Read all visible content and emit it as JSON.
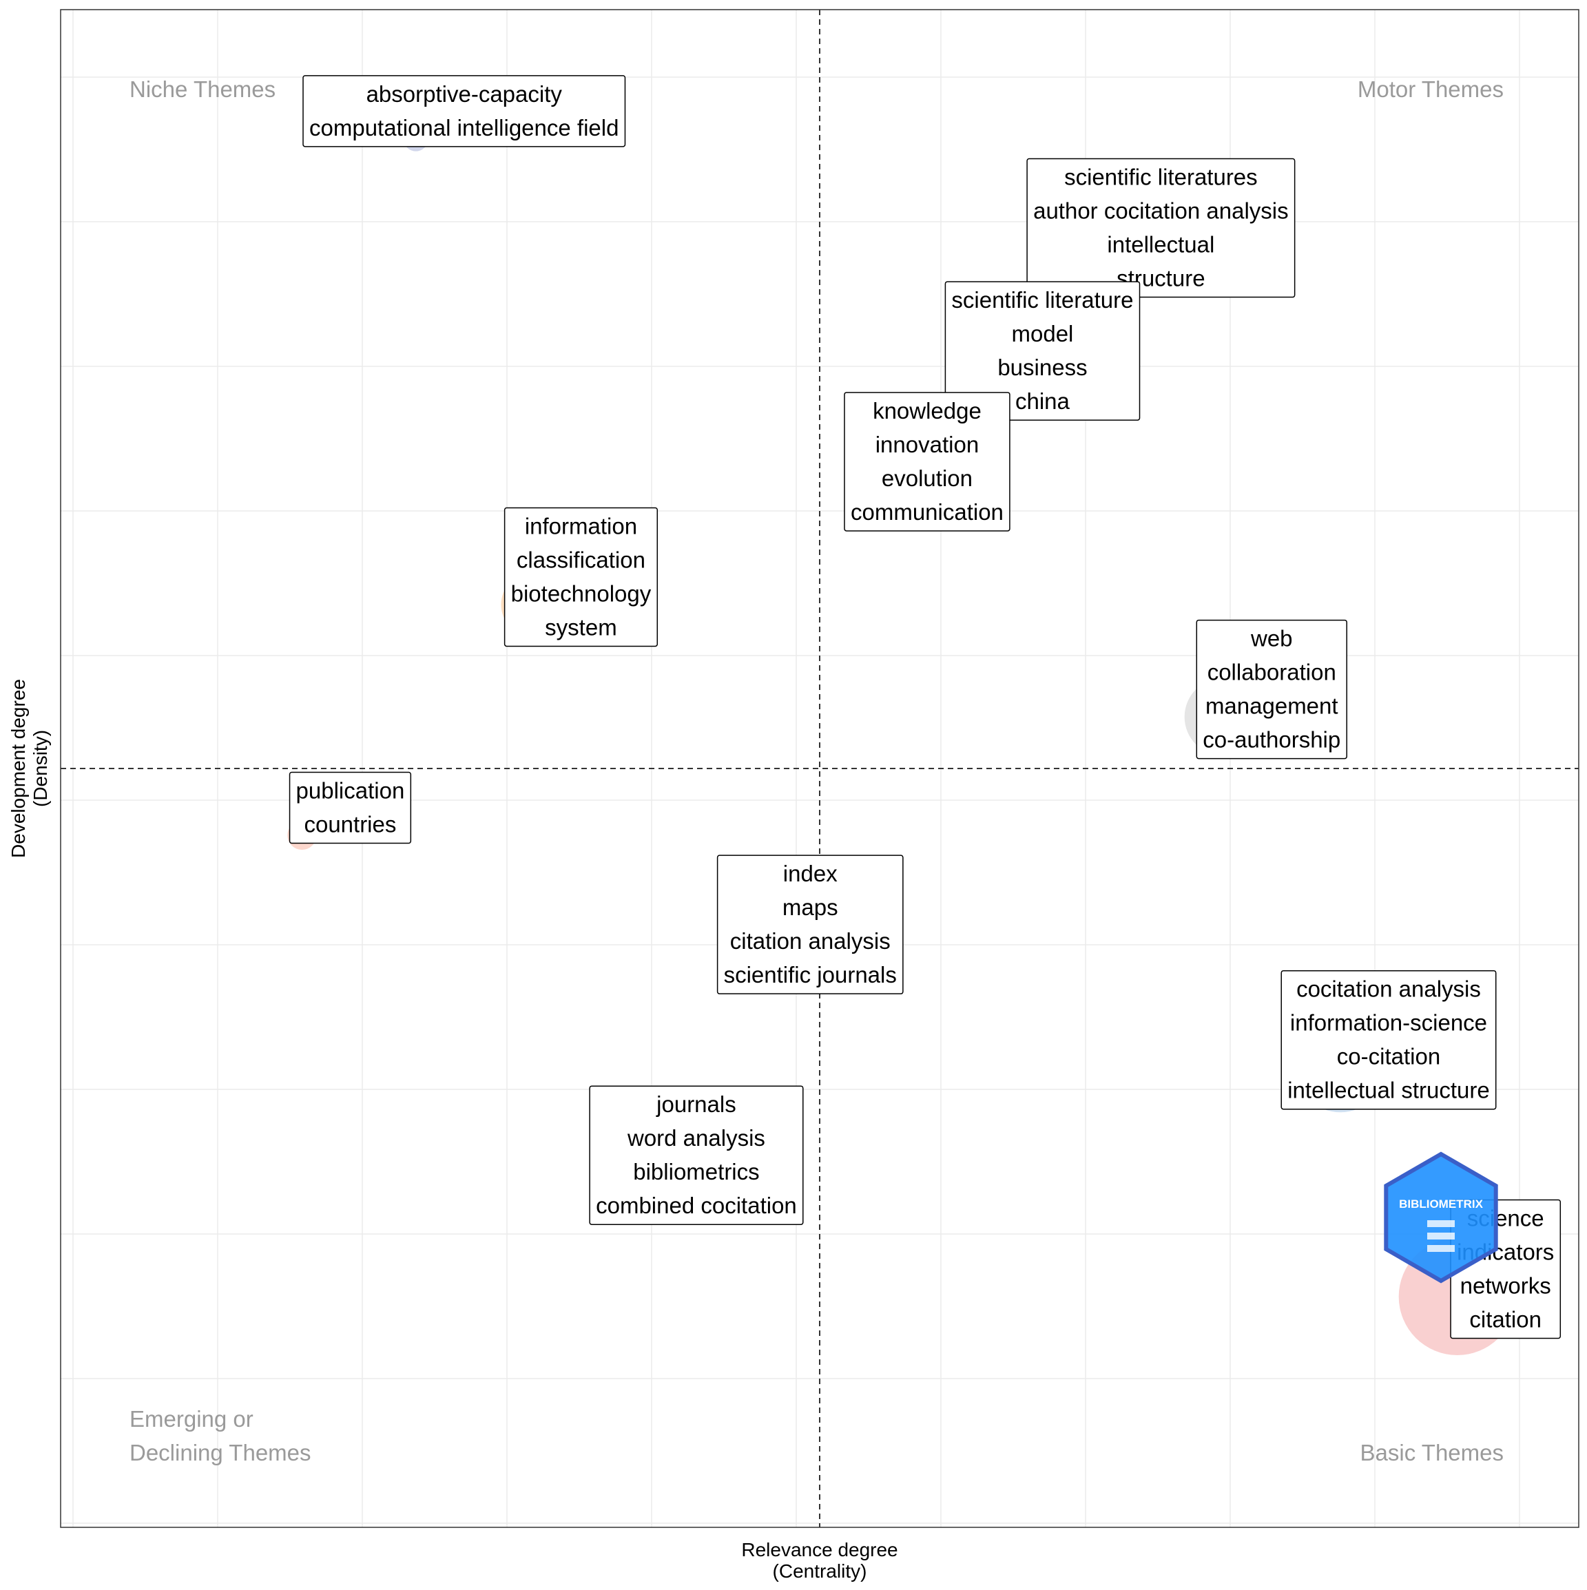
{
  "chart_data": {
    "type": "scatter",
    "xlabel": [
      "Relevance degree",
      "(Centrality)"
    ],
    "ylabel": [
      "Development degree",
      "(Density)"
    ],
    "quadrants": {
      "niche": [
        "Niche Themes"
      ],
      "motor": [
        "Motor Themes"
      ],
      "emerging": [
        "Emerging or",
        "Declining Themes"
      ],
      "basic": [
        "Basic Themes"
      ]
    },
    "grid": true,
    "reference_lines": {
      "x": 0.5,
      "y": 0.5
    },
    "xlim": [
      0,
      1
    ],
    "ylim": [
      0,
      1
    ],
    "themes": [
      {
        "x": 0.234,
        "y": 0.915,
        "size": 0.06,
        "color": "#c9cfe8",
        "labels": [
          "absorptive-capacity",
          "computational intelligence field"
        ]
      },
      {
        "x": 0.693,
        "y": 0.838,
        "size": 0.25,
        "color": "#e2c8e8",
        "labels": [
          "scientific literatures",
          "author cocitation analysis",
          "intellectual",
          "structure"
        ]
      },
      {
        "x": 0.615,
        "y": 0.757,
        "size": 0.38,
        "color": "#c8e8c8",
        "labels": [
          "scientific literature",
          "model",
          "business",
          "china"
        ]
      },
      {
        "x": 0.539,
        "y": 0.684,
        "size": 0.4,
        "color": "#f8c8e8",
        "labels": [
          "knowledge",
          "innovation",
          "evolution",
          "communication"
        ]
      },
      {
        "x": 0.311,
        "y": 0.608,
        "size": 0.45,
        "color": "#fcd8b4",
        "labels": [
          "information",
          "classification",
          "biotechnology",
          "system"
        ]
      },
      {
        "x": 0.766,
        "y": 0.534,
        "size": 0.6,
        "color": "#e0e0e0",
        "labels": [
          "web",
          "collaboration",
          "management",
          "co-authorship"
        ]
      },
      {
        "x": 0.159,
        "y": 0.456,
        "size": 0.1,
        "color": "#fcd0c4",
        "labels": [
          "publication",
          "countries"
        ]
      },
      {
        "x": 0.462,
        "y": 0.379,
        "size": 0.45,
        "color": "#cce8dc",
        "labels": [
          "index",
          "maps",
          "citation analysis",
          "scientific journals"
        ]
      },
      {
        "x": 0.843,
        "y": 0.303,
        "size": 0.72,
        "color": "#c8dcf0",
        "labels": [
          "cocitation analysis",
          "information-science",
          "co-citation",
          "intellectual structure"
        ]
      },
      {
        "x": 0.387,
        "y": 0.227,
        "size": 0.55,
        "color": "#e8d0c4",
        "labels": [
          "journals",
          "word analysis",
          "bibliometrics",
          "combined cocitation"
        ]
      },
      {
        "x": 0.92,
        "y": 0.152,
        "size": 1.0,
        "color": "#f8c8c8",
        "labels": [
          "science",
          "indicators",
          "networks",
          "citation"
        ]
      }
    ]
  },
  "logo": {
    "text": "BIBLIOMETRIX",
    "color": "#2f7fe0"
  }
}
